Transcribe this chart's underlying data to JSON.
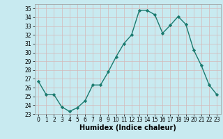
{
  "x": [
    0,
    1,
    2,
    3,
    4,
    5,
    6,
    7,
    8,
    9,
    10,
    11,
    12,
    13,
    14,
    15,
    16,
    17,
    18,
    19,
    20,
    21,
    22,
    23
  ],
  "y": [
    26.7,
    25.2,
    25.2,
    23.8,
    23.3,
    23.7,
    24.5,
    26.3,
    26.3,
    27.8,
    29.5,
    31.0,
    32.0,
    34.8,
    34.8,
    34.3,
    32.2,
    33.1,
    34.1,
    33.2,
    30.3,
    28.5,
    26.3,
    25.2
  ],
  "line_color": "#1a7a6e",
  "marker": "D",
  "marker_size": 2.2,
  "bg_color": "#c8eaf0",
  "grid_color": "#d4b8b8",
  "xlabel": "Humidex (Indice chaleur)",
  "xlim": [
    -0.5,
    23.5
  ],
  "ylim": [
    23,
    35.5
  ],
  "yticks": [
    23,
    24,
    25,
    26,
    27,
    28,
    29,
    30,
    31,
    32,
    33,
    34,
    35
  ],
  "xticks": [
    0,
    1,
    2,
    3,
    4,
    5,
    6,
    7,
    8,
    9,
    10,
    11,
    12,
    13,
    14,
    15,
    16,
    17,
    18,
    19,
    20,
    21,
    22,
    23
  ],
  "xtick_labels": [
    "0",
    "1",
    "2",
    "3",
    "4",
    "5",
    "6",
    "7",
    "8",
    "9",
    "10",
    "11",
    "12",
    "13",
    "14",
    "15",
    "16",
    "17",
    "18",
    "19",
    "20",
    "21",
    "22",
    "23"
  ],
  "tick_fontsize": 5.5,
  "xlabel_fontsize": 7.0,
  "line_width": 1.0
}
